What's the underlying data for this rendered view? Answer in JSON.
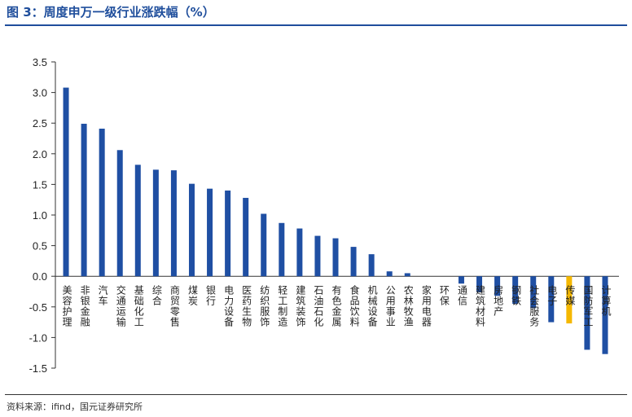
{
  "title": "图 3：周度申万一级行业涨跌幅（%）",
  "source": "资料来源：ifind，国元证券研究所",
  "colors": {
    "title": "#1f4e9c",
    "bar": "#1f4fa3",
    "highlight": "#f5b800"
  },
  "chart_data": {
    "type": "bar",
    "title": "周度申万一级行业涨跌幅（%）",
    "xlabel": "",
    "ylabel": "",
    "ylim": [
      -1.5,
      3.5
    ],
    "yticks": [
      3.5,
      3.0,
      2.5,
      2.0,
      1.5,
      1.0,
      0.5,
      0.0,
      -0.5,
      -1.0,
      -1.5
    ],
    "ytick_labels": [
      "3.5",
      "3.0",
      "2.5",
      "2.0",
      "1.5",
      "1.0",
      "0.5",
      "0.0",
      "-0.5",
      "-1.0",
      "-1.5"
    ],
    "grid": false,
    "highlight_category": "传媒",
    "categories": [
      "美容护理",
      "非银金融",
      "汽车",
      "交通运输",
      "基础化工",
      "综合",
      "商贸零售",
      "煤炭",
      "银行",
      "电力设备",
      "医药生物",
      "纺织服饰",
      "轻工制造",
      "建筑装饰",
      "石油石化",
      "有色金属",
      "食品饮料",
      "机械设备",
      "公用事业",
      "农林牧渔",
      "家用电器",
      "环保",
      "通信",
      "建筑材料",
      "房地产",
      "钢铁",
      "社会服务",
      "电子",
      "传媒",
      "国防军工",
      "计算机"
    ],
    "values": [
      3.08,
      2.49,
      2.41,
      2.06,
      1.82,
      1.74,
      1.73,
      1.51,
      1.43,
      1.4,
      1.28,
      1.02,
      0.87,
      0.78,
      0.66,
      0.62,
      0.48,
      0.36,
      0.08,
      0.05,
      0.0,
      0.0,
      -0.12,
      -0.26,
      -0.32,
      -0.45,
      -0.52,
      -0.75,
      -0.77,
      -1.2,
      -1.27
    ]
  }
}
